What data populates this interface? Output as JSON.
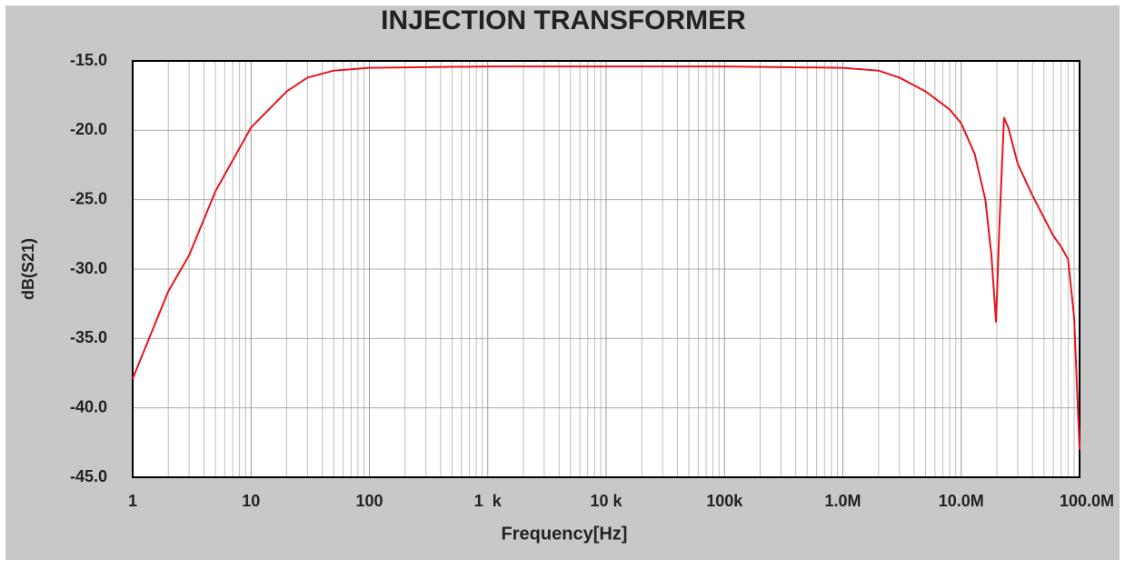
{
  "chart_data": {
    "type": "line",
    "title": "INJECTION TRANSFORMER",
    "x_label": "Frequency[Hz]",
    "y_label": "dB(S21)",
    "xscale": "log",
    "grid": true,
    "color": "#e8141c",
    "x": [
      1,
      2,
      3,
      5,
      10,
      20,
      30,
      50,
      100,
      1000,
      10000,
      100000,
      1000000,
      2000000,
      3000000,
      5000000,
      8000000,
      10000000,
      13000000,
      16000000,
      18000000,
      19700000,
      21000000,
      23000000,
      25000000,
      30000000,
      40000000,
      60000000,
      70000000,
      80000000,
      90000000,
      100000000
    ],
    "values": [
      -37.9,
      -31.6,
      -29,
      -24.4,
      -19.8,
      -17.2,
      -16.2,
      -15.7,
      -15.5,
      -15.4,
      -15.4,
      -15.4,
      -15.5,
      -15.7,
      -16.2,
      -17.2,
      -18.5,
      -19.5,
      -21.7,
      -25,
      -29,
      -33.8,
      -27,
      -19.1,
      -19.8,
      -22.4,
      -24.7,
      -27.6,
      -28.4,
      -29.3,
      -33.5,
      -43
    ],
    "xlim": [
      1,
      100000000
    ],
    "xticks": [
      1,
      10,
      100,
      {
        "value": 1000,
        "label": "1  k"
      },
      {
        "value": 10000,
        "label": "10 k"
      },
      {
        "value": 100000,
        "label": "100k"
      },
      {
        "value": 1000000,
        "label": "1.0M"
      },
      {
        "value": 10000000,
        "label": "10.0M"
      },
      {
        "value": 100000000,
        "label": "100.0M"
      }
    ],
    "ylim": [
      -45,
      -15
    ],
    "yticks": [
      {
        "value": -15,
        "label": "-15.0"
      },
      {
        "value": -20,
        "label": "-20.0"
      },
      {
        "value": -25,
        "label": "-25.0"
      },
      {
        "value": -30,
        "label": "-30.0"
      },
      {
        "value": -35,
        "label": "-35.0"
      },
      {
        "value": -40,
        "label": "-40.0"
      },
      {
        "value": -45,
        "label": "-45.0"
      }
    ]
  }
}
